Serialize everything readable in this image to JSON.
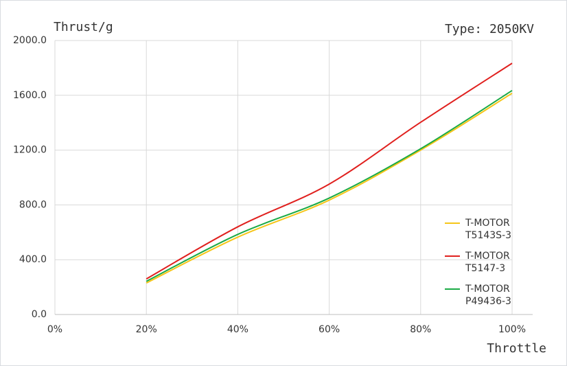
{
  "chart_data": {
    "type": "line",
    "y_label": "Thrust/g",
    "x_label": "Throttle",
    "annotation": "Type: 2050KV",
    "x": [
      20,
      40,
      60,
      80,
      100
    ],
    "series": [
      {
        "name": "T-MOTOR T5143S-3",
        "color": "#f5c518",
        "values": [
          230,
          565,
          835,
          1200,
          1615
        ]
      },
      {
        "name": "T-MOTOR T5147-3",
        "color": "#e0201e",
        "values": [
          260,
          640,
          952,
          1403,
          1834
        ]
      },
      {
        "name": "T-MOTOR P49436-3",
        "color": "#1aaa45",
        "values": [
          242,
          585,
          850,
          1210,
          1635
        ]
      }
    ],
    "xlim": [
      0,
      100
    ],
    "xticks": [
      {
        "value": 0,
        "label": "0%"
      },
      {
        "value": 20,
        "label": "20%"
      },
      {
        "value": 40,
        "label": "40%"
      },
      {
        "value": 60,
        "label": "60%"
      },
      {
        "value": 80,
        "label": "80%"
      },
      {
        "value": 100,
        "label": "100%"
      }
    ],
    "ylim": [
      0,
      2000
    ],
    "yticks": [
      {
        "value": 0,
        "label": "0.0"
      },
      {
        "value": 400,
        "label": "400.0"
      },
      {
        "value": 800,
        "label": "800.0"
      },
      {
        "value": 1200,
        "label": "1200.0"
      },
      {
        "value": 1600,
        "label": "1600.0"
      },
      {
        "value": 2000,
        "label": "2000.0"
      }
    ],
    "grid": true,
    "legend": "lower right"
  }
}
